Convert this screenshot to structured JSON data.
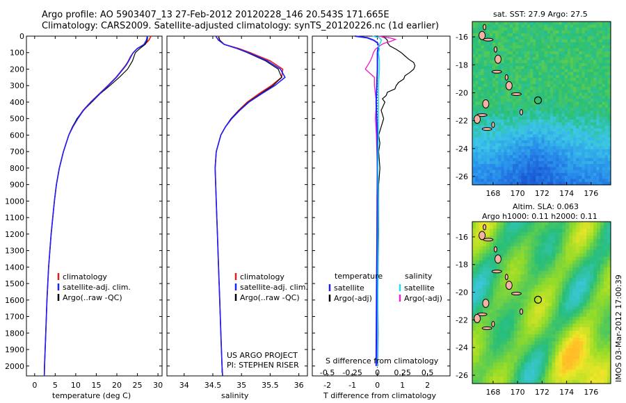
{
  "header": {
    "line1": "Argo profile: AO 5903407_13 27-Feb-2012 20120228_146 20.543S 171.665E",
    "line2": "Climatology: CARS2009. Satellite-adjusted climatology: synTS_20120226.nc (1d earlier)"
  },
  "watermark": "IMOS 03-Mar-2012 17:00:39",
  "colors": {
    "climatology": "#e41a1c",
    "satellite": "#1f1fff",
    "argo": "#000000",
    "sal_satellite": "#22ddee",
    "sal_argo": "#ee22cc"
  },
  "chart_data": [
    {
      "type": "line",
      "id": "temperature",
      "xlabel": "temperature (deg C)",
      "ylabel": "",
      "xlim": [
        -2,
        31
      ],
      "ylim": [
        2060,
        0
      ],
      "xticks": [
        "0",
        "5",
        "10",
        "15",
        "20",
        "25",
        "30"
      ],
      "yticks": [
        "0",
        "100",
        "200",
        "300",
        "400",
        "500",
        "600",
        "700",
        "800",
        "900",
        "1000",
        "1100",
        "1200",
        "1300",
        "1400",
        "1500",
        "1600",
        "1700",
        "1800",
        "1900",
        "2000"
      ],
      "legend": [
        "climatology",
        "satellite-adj. clim.",
        "Argo(..raw -QC)"
      ],
      "legend_position": "lower-middle",
      "series": [
        {
          "name": "climatology",
          "depth": [
            0,
            25,
            50,
            75,
            100,
            125,
            150,
            175,
            200,
            250,
            300,
            350,
            400,
            450,
            500,
            550,
            600,
            700,
            800,
            900,
            1000,
            1200,
            1400,
            1600,
            1800,
            2000,
            2060
          ],
          "values": [
            28.3,
            27.8,
            26.8,
            25.0,
            24.0,
            23.3,
            22.8,
            22.2,
            21.4,
            19.8,
            17.8,
            15.7,
            13.6,
            11.8,
            10.4,
            9.2,
            8.3,
            7.0,
            6.0,
            5.3,
            4.8,
            4.0,
            3.4,
            3.0,
            2.7,
            2.4,
            2.35
          ]
        },
        {
          "name": "satellite-adj. clim.",
          "depth": [
            0,
            25,
            50,
            75,
            100,
            125,
            150,
            175,
            200,
            250,
            300,
            350,
            400,
            450,
            500,
            550,
            600,
            700,
            800,
            900,
            1000,
            1200,
            1400,
            1600,
            1800,
            2000,
            2060
          ],
          "values": [
            27.4,
            27.2,
            26.6,
            25.0,
            24.0,
            23.4,
            22.9,
            22.3,
            21.5,
            19.9,
            17.9,
            15.8,
            13.7,
            11.9,
            10.5,
            9.3,
            8.3,
            7.0,
            6.0,
            5.3,
            4.8,
            4.0,
            3.4,
            3.0,
            2.7,
            2.4,
            2.35
          ]
        },
        {
          "name": "Argo(..raw -QC)",
          "depth": [
            5,
            25,
            50,
            75,
            100,
            150,
            200,
            250,
            300,
            350,
            400,
            450,
            500,
            550,
            600,
            700,
            800,
            900,
            1000,
            1200,
            1400,
            1600,
            1800,
            2000,
            2040
          ],
          "values": [
            27.5,
            27.4,
            26.9,
            25.6,
            24.5,
            23.8,
            22.6,
            20.6,
            18.3,
            15.9,
            13.9,
            11.9,
            10.3,
            9.2,
            8.3,
            7.0,
            6.0,
            5.3,
            4.8,
            4.0,
            3.4,
            3.0,
            2.7,
            2.4,
            2.37
          ]
        }
      ]
    },
    {
      "type": "line",
      "id": "salinity",
      "xlabel": "salinity",
      "xlim": [
        33.7,
        36.15
      ],
      "ylim": [
        2060,
        0
      ],
      "xticks": [
        "34",
        "34.5",
        "35",
        "35.5",
        "36"
      ],
      "legend": [
        "climatology",
        "satellite-adj. clim.",
        "Argo(..raw -QC)"
      ],
      "legend_position": "lower-right",
      "annotation": [
        "US ARGO PROJECT",
        "PI: STEPHEN RISER"
      ],
      "series": [
        {
          "name": "climatology",
          "depth": [
            0,
            25,
            50,
            75,
            100,
            150,
            200,
            250,
            300,
            350,
            400,
            450,
            500,
            550,
            600,
            700,
            800,
            900,
            1000,
            1100,
            1200,
            1400,
            1600,
            1800,
            2000,
            2060
          ],
          "values": [
            34.6,
            34.62,
            34.7,
            34.95,
            35.15,
            35.5,
            35.72,
            35.7,
            35.52,
            35.3,
            35.1,
            34.95,
            34.82,
            34.72,
            34.64,
            34.56,
            34.54,
            34.55,
            34.56,
            34.57,
            34.58,
            34.6,
            34.62,
            34.64,
            34.66,
            34.67
          ]
        },
        {
          "name": "satellite-adj. clim.",
          "depth": [
            0,
            25,
            50,
            75,
            100,
            150,
            200,
            250,
            300,
            350,
            400,
            450,
            500,
            550,
            600,
            700,
            800,
            900,
            1000,
            1100,
            1200,
            1400,
            1600,
            1800,
            2000,
            2060
          ],
          "values": [
            34.55,
            34.6,
            34.7,
            34.92,
            35.12,
            35.45,
            35.68,
            35.76,
            35.58,
            35.35,
            35.13,
            34.97,
            34.83,
            34.72,
            34.64,
            34.56,
            34.54,
            34.55,
            34.56,
            34.57,
            34.58,
            34.6,
            34.62,
            34.64,
            34.66,
            34.67
          ]
        },
        {
          "name": "Argo(..raw -QC)",
          "depth": [
            5,
            25,
            50,
            75,
            100,
            150,
            200,
            250,
            300,
            350,
            400,
            450,
            500,
            550,
            600,
            700,
            800,
            900,
            1000,
            1200,
            1400,
            1600,
            1800,
            2000,
            2040
          ],
          "values": [
            34.6,
            34.62,
            34.7,
            34.92,
            35.1,
            35.42,
            35.64,
            35.7,
            35.55,
            35.33,
            35.12,
            34.96,
            34.82,
            34.72,
            34.64,
            34.56,
            34.54,
            34.55,
            34.56,
            34.58,
            34.6,
            34.62,
            34.64,
            34.66,
            34.66
          ]
        }
      ]
    },
    {
      "type": "line",
      "id": "differences",
      "xlabel": "T difference from climatology",
      "xlabel_top": "S difference from climatology",
      "xlim": [
        -2.6,
        2.9
      ],
      "ylim": [
        2060,
        0
      ],
      "xticks": [
        "-2",
        "-1",
        "0",
        "1",
        "2"
      ],
      "xticks_top": [
        "-0.5",
        "-0.25",
        "0",
        "0.25",
        "0.5"
      ],
      "legend": [
        "temperature",
        "satellite",
        "Argo(-adj)",
        "salinity",
        "satellite",
        "Argo(-adj)"
      ],
      "legend_position": "lower-middle",
      "series": [
        {
          "name": "T satellite",
          "depth": [
            0,
            10,
            25,
            40,
            60,
            80,
            100,
            200,
            400,
            600,
            800,
            1000,
            1500,
            2000
          ],
          "values": [
            -0.9,
            -0.4,
            -0.15,
            0,
            0.05,
            0.02,
            0,
            0,
            -0.05,
            0,
            0,
            0,
            -0.03,
            -0.05
          ]
        },
        {
          "name": "T Argo(-adj)",
          "depth": [
            0,
            10,
            25,
            40,
            60,
            80,
            100,
            120,
            140,
            160,
            180,
            200,
            220,
            240,
            260,
            280,
            300,
            320,
            340,
            360,
            380,
            400,
            450,
            500,
            550,
            600,
            650,
            700,
            800,
            900,
            1000,
            1200,
            1400,
            1600,
            1800,
            2000
          ],
          "values": [
            0.1,
            0.3,
            0.4,
            0.4,
            0.5,
            0.75,
            0.95,
            1.1,
            1.25,
            1.45,
            1.5,
            1.45,
            1.3,
            1.1,
            1.05,
            0.85,
            0.75,
            0.7,
            0.4,
            0.35,
            0.2,
            0.3,
            0.15,
            0.25,
            0.15,
            0.05,
            0.1,
            0.05,
            0.1,
            0.05,
            0.05,
            0.05,
            0.03,
            0.02,
            0.03,
            0.02
          ]
        },
        {
          "name": "S satellite",
          "depth": [
            0,
            10,
            25,
            40,
            60,
            80,
            100,
            150,
            200,
            300,
            400,
            600,
            800,
            1000,
            1500,
            2000
          ],
          "values": [
            -0.05,
            0.02,
            0.04,
            0.03,
            0.01,
            0.02,
            0.01,
            0.02,
            0.02,
            0.01,
            0.01,
            0.01,
            0.005,
            0.01,
            0.005,
            0.005
          ]
        },
        {
          "name": "S Argo(-adj)",
          "depth": [
            0,
            10,
            20,
            30,
            45,
            60,
            80,
            100,
            120,
            150,
            200,
            250,
            300,
            400,
            500,
            600,
            800,
            1000,
            1200,
            1400,
            1600,
            1800,
            2000
          ],
          "values": [
            0.01,
            0.12,
            0.18,
            0.14,
            0.06,
            0.02,
            -0.02,
            -0.04,
            -0.05,
            -0.07,
            -0.12,
            -0.03,
            -0.03,
            -0.01,
            -0.02,
            -0.01,
            0.0,
            -0.005,
            -0.005,
            -0.002,
            -0.002,
            0.0,
            0.0
          ]
        }
      ]
    },
    {
      "type": "heatmap",
      "id": "sst_map",
      "title": "sat. SST: 27.9 Argo: 27.5",
      "xlim": [
        166.3,
        177.6
      ],
      "ylim": [
        -26.6,
        -14.9
      ],
      "xticks": [
        "168",
        "170",
        "172",
        "174",
        "176"
      ],
      "yticks": [
        "-16",
        "-18",
        "-20",
        "-22",
        "-24",
        "-26"
      ],
      "marker": {
        "lon": 171.665,
        "lat": -20.543
      }
    },
    {
      "type": "heatmap",
      "id": "sla_map",
      "title": "Altim. SLA: 0.063",
      "subtitle": "Argo h1000: 0.11 h2000: 0.11",
      "xlim": [
        166.3,
        177.6
      ],
      "ylim": [
        -26.6,
        -14.9
      ],
      "xticks": [
        "168",
        "170",
        "172",
        "174",
        "176"
      ],
      "yticks": [
        "-16",
        "-18",
        "-20",
        "-22",
        "-24",
        "-26"
      ],
      "marker": {
        "lon": 171.665,
        "lat": -20.543
      }
    }
  ]
}
